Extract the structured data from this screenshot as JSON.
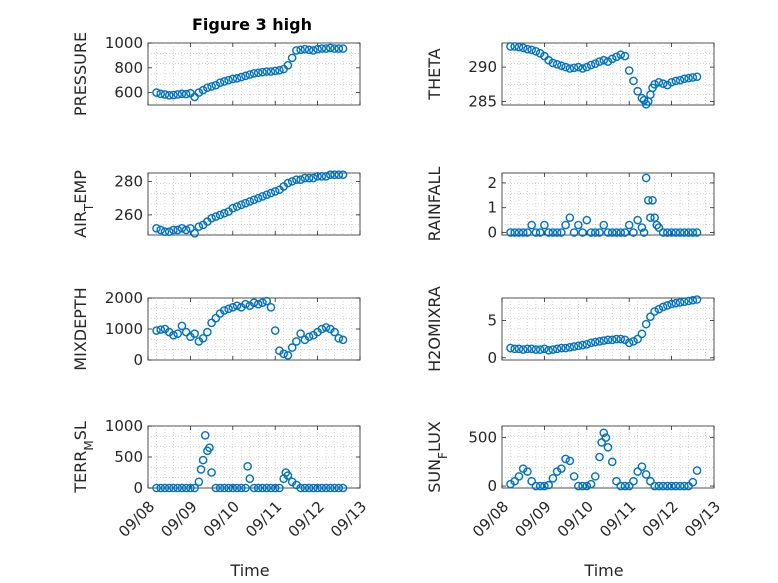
{
  "figure": {
    "title": "Figure 3 high",
    "marker_color": "#0072BD"
  },
  "chart_data": [
    {
      "type": "scatter",
      "ylabel": "PRESSURE",
      "xlabel": "",
      "xlim": [
        0,
        5
      ],
      "ylim": [
        500,
        1000
      ],
      "yticks": [
        600,
        800,
        1000
      ],
      "ytick_labels": [
        "600",
        "800",
        "1000"
      ],
      "grid": true,
      "x": [
        0.2,
        0.3,
        0.4,
        0.5,
        0.6,
        0.7,
        0.8,
        0.9,
        1.0,
        1.1,
        1.2,
        1.3,
        1.4,
        1.5,
        1.6,
        1.7,
        1.8,
        1.9,
        2.0,
        2.1,
        2.2,
        2.3,
        2.4,
        2.5,
        2.6,
        2.7,
        2.8,
        2.9,
        3.0,
        3.1,
        3.2,
        3.3,
        3.4,
        3.5,
        3.6,
        3.7,
        3.8,
        3.9,
        4.0,
        4.1,
        4.2,
        4.3,
        4.4,
        4.5,
        4.6
      ],
      "y": [
        600,
        590,
        585,
        578,
        580,
        585,
        590,
        588,
        595,
        565,
        600,
        620,
        640,
        650,
        660,
        680,
        690,
        700,
        710,
        715,
        725,
        735,
        745,
        755,
        760,
        765,
        770,
        770,
        775,
        780,
        790,
        820,
        880,
        940,
        945,
        950,
        945,
        940,
        950,
        955,
        955,
        960,
        955,
        955,
        955
      ]
    },
    {
      "type": "scatter",
      "ylabel": "THETA",
      "xlabel": "",
      "xlim": [
        0,
        5
      ],
      "ylim": [
        284.5,
        293.5
      ],
      "yticks": [
        285,
        290
      ],
      "ytick_labels": [
        "285",
        "290"
      ],
      "grid": true,
      "x": [
        0.2,
        0.3,
        0.4,
        0.5,
        0.6,
        0.7,
        0.8,
        0.9,
        1.0,
        1.1,
        1.2,
        1.3,
        1.4,
        1.5,
        1.6,
        1.7,
        1.8,
        1.9,
        2.0,
        2.1,
        2.2,
        2.3,
        2.4,
        2.5,
        2.6,
        2.7,
        2.8,
        2.9,
        3.0,
        3.1,
        3.2,
        3.3,
        3.35,
        3.4,
        3.45,
        3.5,
        3.55,
        3.6,
        3.7,
        3.8,
        3.9,
        4.0,
        4.1,
        4.2,
        4.3,
        4.4,
        4.5,
        4.6
      ],
      "y": [
        293,
        293,
        292.9,
        292.8,
        292.6,
        292.5,
        292.3,
        292.0,
        291.6,
        291.0,
        290.6,
        290.4,
        290.2,
        290.0,
        289.8,
        289.9,
        290.0,
        289.8,
        290.0,
        290.3,
        290.5,
        290.8,
        291.0,
        290.8,
        291.2,
        291.5,
        291.8,
        291.6,
        289.5,
        288.0,
        286.5,
        285.5,
        285.2,
        284.6,
        285.0,
        286.0,
        287.0,
        287.5,
        287.8,
        287.6,
        287.4,
        287.8,
        288.0,
        288.1,
        288.3,
        288.4,
        288.5,
        288.6
      ]
    },
    {
      "type": "scatter",
      "ylabel": "AIR_TEMP",
      "xlabel": "",
      "xlim": [
        0,
        5
      ],
      "ylim": [
        248,
        285
      ],
      "yticks": [
        260,
        280
      ],
      "ytick_labels": [
        "260",
        "280"
      ],
      "grid": true,
      "x": [
        0.2,
        0.3,
        0.4,
        0.5,
        0.6,
        0.7,
        0.8,
        0.9,
        1.0,
        1.1,
        1.2,
        1.3,
        1.4,
        1.5,
        1.6,
        1.7,
        1.8,
        1.9,
        2.0,
        2.1,
        2.2,
        2.3,
        2.4,
        2.5,
        2.6,
        2.7,
        2.8,
        2.9,
        3.0,
        3.1,
        3.2,
        3.3,
        3.4,
        3.5,
        3.6,
        3.7,
        3.8,
        3.9,
        4.0,
        4.1,
        4.2,
        4.3,
        4.4,
        4.5,
        4.6
      ],
      "y": [
        252,
        251,
        250,
        250,
        251,
        251,
        252,
        251,
        252,
        249,
        253,
        254,
        256,
        258,
        259,
        260,
        261,
        262,
        264,
        265,
        266,
        267,
        268,
        269,
        270,
        271,
        272,
        273,
        274,
        275,
        277,
        279,
        280,
        281,
        281,
        282,
        282,
        282,
        283,
        283,
        283,
        284,
        284,
        284,
        284
      ]
    },
    {
      "type": "scatter",
      "ylabel": "RAINFALL",
      "xlabel": "",
      "xlim": [
        0,
        5
      ],
      "ylim": [
        -0.1,
        2.4
      ],
      "yticks": [
        0,
        1,
        2
      ],
      "ytick_labels": [
        "0",
        "1",
        "2"
      ],
      "grid": true,
      "x": [
        0.2,
        0.3,
        0.4,
        0.5,
        0.6,
        0.7,
        0.8,
        0.9,
        1.0,
        1.1,
        1.2,
        1.3,
        1.4,
        1.5,
        1.6,
        1.7,
        1.8,
        1.9,
        2.0,
        2.1,
        2.2,
        2.3,
        2.4,
        2.5,
        2.6,
        2.7,
        2.8,
        2.9,
        3.0,
        3.1,
        3.2,
        3.3,
        3.35,
        3.4,
        3.45,
        3.5,
        3.55,
        3.6,
        3.65,
        3.7,
        3.8,
        3.9,
        4.0,
        4.1,
        4.2,
        4.3,
        4.4,
        4.5,
        4.6
      ],
      "y": [
        0,
        0,
        0,
        0,
        0,
        0.3,
        0,
        0,
        0.3,
        0,
        0,
        0,
        0,
        0.3,
        0.6,
        0,
        0.3,
        0,
        0.5,
        0,
        0,
        0,
        0.3,
        0,
        0,
        0,
        0,
        0,
        0.3,
        0,
        0.5,
        0.2,
        0,
        2.2,
        1.3,
        0.6,
        1.3,
        0.6,
        0.3,
        0.2,
        0,
        0,
        0,
        0,
        0,
        0,
        0,
        0,
        0
      ]
    },
    {
      "type": "scatter",
      "ylabel": "MIXDEPTH",
      "xlabel": "",
      "xlim": [
        0,
        5
      ],
      "ylim": [
        0,
        2000
      ],
      "yticks": [
        0,
        1000,
        2000
      ],
      "ytick_labels": [
        "0",
        "1000",
        "2000"
      ],
      "grid": true,
      "x": [
        0.2,
        0.3,
        0.4,
        0.5,
        0.6,
        0.7,
        0.8,
        0.9,
        1.0,
        1.1,
        1.2,
        1.3,
        1.4,
        1.5,
        1.6,
        1.7,
        1.8,
        1.9,
        2.0,
        2.1,
        2.2,
        2.3,
        2.4,
        2.5,
        2.6,
        2.7,
        2.8,
        2.9,
        3.0,
        3.1,
        3.2,
        3.3,
        3.4,
        3.5,
        3.6,
        3.7,
        3.8,
        3.9,
        4.0,
        4.1,
        4.2,
        4.3,
        4.4,
        4.5,
        4.6
      ],
      "y": [
        950,
        980,
        1000,
        900,
        800,
        850,
        1100,
        900,
        750,
        850,
        600,
        700,
        900,
        1200,
        1350,
        1500,
        1600,
        1650,
        1700,
        1750,
        1700,
        1800,
        1750,
        1850,
        1800,
        1850,
        1900,
        1700,
        950,
        300,
        200,
        150,
        400,
        600,
        850,
        650,
        750,
        800,
        900,
        1000,
        1050,
        1000,
        900,
        700,
        650
      ]
    },
    {
      "type": "scatter",
      "ylabel": "H2OMIXRA",
      "xlabel": "",
      "xlim": [
        0,
        5
      ],
      "ylim": [
        -0.3,
        8
      ],
      "yticks": [
        0,
        5
      ],
      "ytick_labels": [
        "0",
        "5"
      ],
      "grid": true,
      "x": [
        0.2,
        0.3,
        0.4,
        0.5,
        0.6,
        0.7,
        0.8,
        0.9,
        1.0,
        1.1,
        1.2,
        1.3,
        1.4,
        1.5,
        1.6,
        1.7,
        1.8,
        1.9,
        2.0,
        2.1,
        2.2,
        2.3,
        2.4,
        2.5,
        2.6,
        2.7,
        2.8,
        2.9,
        3.0,
        3.1,
        3.2,
        3.3,
        3.4,
        3.5,
        3.6,
        3.7,
        3.8,
        3.9,
        4.0,
        4.1,
        4.2,
        4.3,
        4.4,
        4.5,
        4.6
      ],
      "y": [
        1.3,
        1.2,
        1.2,
        1.1,
        1.2,
        1.2,
        1.1,
        1.1,
        1.2,
        1.0,
        1.1,
        1.2,
        1.3,
        1.3,
        1.4,
        1.5,
        1.6,
        1.7,
        1.8,
        2.0,
        2.1,
        2.2,
        2.3,
        2.4,
        2.4,
        2.5,
        2.5,
        2.4,
        2.0,
        2.2,
        2.5,
        3.2,
        4.5,
        5.5,
        6.2,
        6.5,
        6.8,
        7.0,
        7.2,
        7.3,
        7.4,
        7.5,
        7.6,
        7.7,
        7.8
      ]
    },
    {
      "type": "scatter",
      "ylabel": "TERR_MSL",
      "xlabel": "Time",
      "xlim": [
        0,
        5
      ],
      "ylim": [
        0,
        1000
      ],
      "yticks": [
        0,
        500,
        1000
      ],
      "ytick_labels": [
        "0",
        "500",
        "1000"
      ],
      "xticks": [
        0,
        1,
        2,
        3,
        4,
        5
      ],
      "xtick_labels": [
        "09/08",
        "09/09",
        "09/10",
        "09/11",
        "09/12",
        "09/13"
      ],
      "grid": true,
      "x": [
        0.2,
        0.3,
        0.4,
        0.5,
        0.6,
        0.7,
        0.8,
        0.9,
        1.0,
        1.1,
        1.2,
        1.25,
        1.3,
        1.35,
        1.4,
        1.45,
        1.5,
        1.6,
        1.7,
        1.8,
        1.9,
        2.0,
        2.1,
        2.2,
        2.3,
        2.35,
        2.4,
        2.5,
        2.6,
        2.7,
        2.8,
        2.9,
        3.0,
        3.1,
        3.2,
        3.25,
        3.3,
        3.4,
        3.5,
        3.6,
        3.7,
        3.8,
        3.9,
        4.0,
        4.1,
        4.2,
        4.3,
        4.4,
        4.5,
        4.6
      ],
      "y": [
        0,
        0,
        0,
        0,
        0,
        0,
        0,
        0,
        0,
        0,
        100,
        300,
        450,
        850,
        600,
        650,
        250,
        0,
        0,
        0,
        0,
        0,
        0,
        0,
        0,
        350,
        150,
        0,
        0,
        0,
        0,
        0,
        0,
        0,
        150,
        250,
        200,
        100,
        50,
        0,
        0,
        0,
        0,
        0,
        0,
        0,
        0,
        0,
        0,
        0
      ]
    },
    {
      "type": "scatter",
      "ylabel": "SUN_FLUX",
      "xlabel": "Time",
      "xlim": [
        0,
        5
      ],
      "ylim": [
        -20,
        620
      ],
      "yticks": [
        0,
        500
      ],
      "ytick_labels": [
        "0",
        "500"
      ],
      "xticks": [
        0,
        1,
        2,
        3,
        4,
        5
      ],
      "xtick_labels": [
        "09/08",
        "09/09",
        "09/10",
        "09/11",
        "09/12",
        "09/13"
      ],
      "grid": true,
      "x": [
        0.2,
        0.3,
        0.4,
        0.5,
        0.6,
        0.7,
        0.8,
        0.9,
        1.0,
        1.1,
        1.2,
        1.3,
        1.4,
        1.5,
        1.6,
        1.7,
        1.8,
        1.9,
        2.0,
        2.1,
        2.2,
        2.3,
        2.35,
        2.4,
        2.45,
        2.5,
        2.6,
        2.7,
        2.8,
        2.9,
        3.0,
        3.1,
        3.2,
        3.3,
        3.4,
        3.5,
        3.6,
        3.7,
        3.8,
        3.9,
        4.0,
        4.1,
        4.2,
        4.3,
        4.4,
        4.5,
        4.6
      ],
      "y": [
        20,
        50,
        100,
        180,
        150,
        50,
        0,
        0,
        0,
        10,
        80,
        150,
        180,
        280,
        260,
        100,
        0,
        0,
        0,
        20,
        100,
        300,
        450,
        550,
        500,
        400,
        250,
        50,
        0,
        0,
        0,
        50,
        150,
        200,
        120,
        50,
        0,
        0,
        0,
        0,
        0,
        0,
        0,
        0,
        0,
        40,
        160
      ]
    }
  ]
}
